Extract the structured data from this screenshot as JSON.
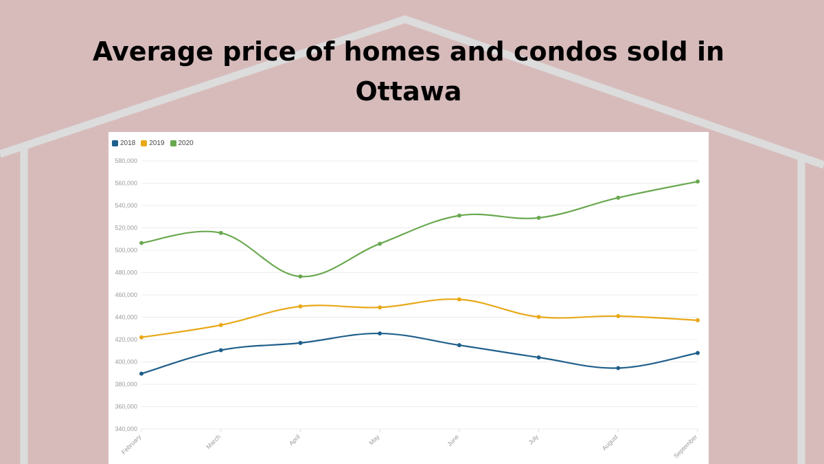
{
  "page": {
    "title": "Average price of homes and condos sold in Ottawa",
    "background": "#d7bbbb",
    "house_outline_color": "#d9d9d9"
  },
  "chart_data": {
    "type": "line",
    "title": "Average price of homes and condos sold in Ottawa",
    "xlabel": "",
    "ylabel": "",
    "categories": [
      "February",
      "March",
      "April",
      "May",
      "June",
      "July",
      "August",
      "September"
    ],
    "ylim": [
      340000,
      580000
    ],
    "yticks": [
      "340,000",
      "360,000",
      "380,000",
      "400,000",
      "420,000",
      "440,000",
      "460,000",
      "480,000",
      "500,000",
      "520,000",
      "540,000",
      "560,000",
      "580,000"
    ],
    "grid": true,
    "legend": "top-left",
    "series": [
      {
        "name": "2018",
        "color": "#1f5f8b",
        "values": [
          389500,
          410500,
          417000,
          425500,
          415000,
          404000,
          394500,
          408000
        ]
      },
      {
        "name": "2019",
        "color": "#e8a817",
        "values": [
          422000,
          433000,
          449700,
          448800,
          456000,
          440300,
          441000,
          437300
        ]
      },
      {
        "name": "2020",
        "color": "#6aa84f",
        "values": [
          506500,
          515500,
          476500,
          505800,
          531000,
          529000,
          547000,
          561500
        ]
      }
    ]
  }
}
